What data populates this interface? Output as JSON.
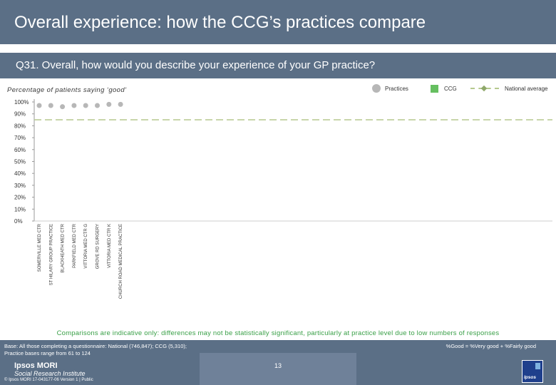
{
  "header": {
    "title": "Overall experience: how the CCG’s practices compare",
    "question": "Q31. Overall, how would you describe your experience of your GP practice?"
  },
  "legend": {
    "practices": "Practices",
    "ccg": "CCG",
    "national": "National average"
  },
  "colors": {
    "header_bg": "#5b6f86",
    "practice_dot": "#b7b7b7",
    "ccg": "#66bf60",
    "national_line": "#b5c98e",
    "note_text": "#3aa048"
  },
  "chart_data": {
    "type": "scatter",
    "title": "",
    "ylabel": "Percentage of patients saying ‘good’",
    "xlabel": "",
    "ylim": [
      0,
      100
    ],
    "y_ticks": [
      "0%",
      "10%",
      "20%",
      "30%",
      "40%",
      "50%",
      "60%",
      "70%",
      "80%",
      "90%",
      "100%"
    ],
    "categories": [
      "SOMERVILLE MED CTR",
      "ST HILARY GROUP PRACTICE",
      "BLACKHEATH MED CTR",
      "PARKFIELD MED CTR",
      "VITTORIA MED CTR G",
      "GROVE RD SURGERY",
      "VITTORIA MED CTR K",
      "CHURCH ROAD MEDICAL PRACTICE"
    ],
    "series": [
      {
        "name": "Practices",
        "values": [
          97,
          97,
          96,
          97,
          97,
          97,
          98,
          98
        ]
      }
    ],
    "national_average": 85,
    "grid": false,
    "legend_position": "top-right"
  },
  "notes": {
    "comparison": "Comparisons are indicative only: differences may not be statistically significant, particularly at practice level due to low numbers of responses"
  },
  "footer": {
    "base_line1": "Base: All those completing a questionnaire: National (746,847); CCG (5,310);",
    "base_line2": "Practice bases range from 61 to 124",
    "formula": "%Good = %Very good + %Fairly good",
    "logo_line1": "Ipsos MORI",
    "logo_line2": "Social Research Institute",
    "page_number": "13",
    "copyright": "© Ipsos MORI      17-043177-06 Version 1 | Public",
    "brand_text": "Ipsos"
  }
}
